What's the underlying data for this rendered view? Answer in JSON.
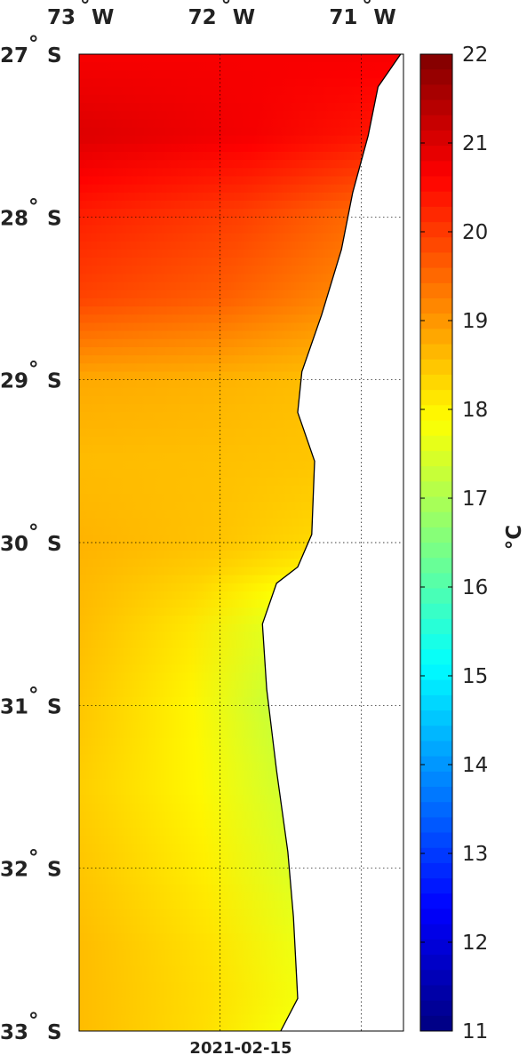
{
  "map": {
    "date": "2021-02-15",
    "longitude_labels": [
      {
        "deg": "73",
        "hem": "W",
        "lon": -73
      },
      {
        "deg": "72",
        "hem": "W",
        "lon": -72
      },
      {
        "deg": "71",
        "hem": "W",
        "lon": -71
      }
    ],
    "latitude_labels": [
      {
        "deg": "27",
        "hem": "S",
        "lat": -27
      },
      {
        "deg": "28",
        "hem": "S",
        "lat": -28
      },
      {
        "deg": "29",
        "hem": "S",
        "lat": -29
      },
      {
        "deg": "30",
        "hem": "S",
        "lat": -30
      },
      {
        "deg": "31",
        "hem": "S",
        "lat": -31
      },
      {
        "deg": "32",
        "hem": "S",
        "lat": -32
      },
      {
        "deg": "33",
        "hem": "S",
        "lat": -33
      }
    ],
    "degree_symbol": "°",
    "extent": {
      "lon_min": -73.0,
      "lon_max": -70.7,
      "lat_min": -33,
      "lat_max": -27
    },
    "grid": true,
    "land_color": "#ffffff",
    "coast_color": "#000000"
  },
  "colorbar": {
    "unit": "°C",
    "range": [
      11,
      22
    ],
    "ticks": [
      "11",
      "12",
      "13",
      "14",
      "15",
      "16",
      "17",
      "18",
      "19",
      "20",
      "21",
      "22"
    ],
    "colormap": "jet"
  },
  "chart_data": {
    "type": "heatmap",
    "variable": "sea surface temperature",
    "unit": "°C",
    "range": [
      11,
      22
    ],
    "coastline": [
      [
        -70.72,
        -27.0
      ],
      [
        -70.88,
        -27.2
      ],
      [
        -70.95,
        -27.5
      ],
      [
        -71.06,
        -27.85
      ],
      [
        -71.14,
        -28.2
      ],
      [
        -71.28,
        -28.6
      ],
      [
        -71.42,
        -28.95
      ],
      [
        -71.45,
        -29.2
      ],
      [
        -71.33,
        -29.5
      ],
      [
        -71.35,
        -29.95
      ],
      [
        -71.45,
        -30.15
      ],
      [
        -71.6,
        -30.25
      ],
      [
        -71.7,
        -30.5
      ],
      [
        -71.67,
        -30.9
      ],
      [
        -71.6,
        -31.4
      ],
      [
        -71.52,
        -31.9
      ],
      [
        -71.48,
        -32.3
      ],
      [
        -71.45,
        -32.8
      ],
      [
        -71.57,
        -33.0
      ]
    ],
    "sst_profile": [
      {
        "lat": -27.0,
        "offshore": 20.7,
        "coast": 20.7
      },
      {
        "lat": -27.5,
        "offshore": 21.0,
        "coast": 20.4
      },
      {
        "lat": -28.0,
        "offshore": 20.3,
        "coast": 19.5
      },
      {
        "lat": -28.5,
        "offshore": 19.9,
        "coast": 19.2
      },
      {
        "lat": -29.0,
        "offshore": 18.8,
        "coast": 18.6
      },
      {
        "lat": -29.5,
        "offshore": 18.6,
        "coast": 18.5
      },
      {
        "lat": -30.0,
        "offshore": 18.7,
        "coast": 18.3
      },
      {
        "lat": -30.5,
        "offshore": 18.6,
        "coast": 17.6
      },
      {
        "lat": -31.0,
        "offshore": 18.5,
        "coast": 17.3
      },
      {
        "lat": -31.5,
        "offshore": 18.4,
        "coast": 17.4
      },
      {
        "lat": -32.0,
        "offshore": 18.5,
        "coast": 17.5
      },
      {
        "lat": -32.5,
        "offshore": 18.6,
        "coast": 17.7
      },
      {
        "lat": -33.0,
        "offshore": 18.6,
        "coast": 17.8
      }
    ]
  }
}
